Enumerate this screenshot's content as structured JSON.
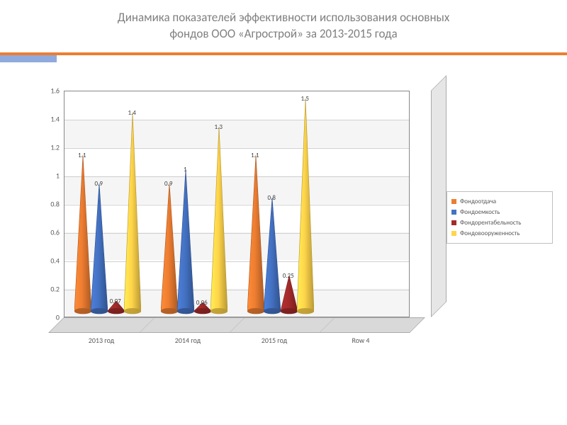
{
  "title_line1": "Динамика показателей эффективности использования основных",
  "title_line2": "фондов  ООО «Агрострой»  за 2013-2015 года",
  "chart": {
    "type": "3d-cone-clustered",
    "background_color": "#ffffff",
    "floor_color": "#d9d9d9",
    "grid_color": "#d0d0d0",
    "border_color": "#888888",
    "ylim": [
      0,
      1.6
    ],
    "ytick_step": 0.2,
    "yticks": [
      "0",
      "0.2",
      "0.4",
      "0.6",
      "0.8",
      "1",
      "1.2",
      "1.4",
      "1.6"
    ],
    "categories": [
      "2013 год",
      "2014 год",
      "2015 год",
      "Row 4"
    ],
    "series": [
      {
        "name": "Фондоотдача",
        "color": "#ed7d31"
      },
      {
        "name": "Фондоемкость",
        "color": "#4472c4"
      },
      {
        "name": "Фондорентабельность",
        "color": "#a52a2a"
      },
      {
        "name": "Фондовооруженность",
        "color": "#ffd54a"
      }
    ],
    "data": [
      [
        1.1,
        0.9,
        0.07,
        1.4
      ],
      [
        0.9,
        1.0,
        0.06,
        1.3
      ],
      [
        1.1,
        0.8,
        0.25,
        1.5
      ],
      [
        null,
        null,
        null,
        null
      ]
    ],
    "label_fontsize": 9,
    "title_fontsize": 17,
    "title_color": "#7f7f7f",
    "axis_fontsize": 10,
    "axis_color": "#595959",
    "cone_half_width": 12
  },
  "header_bar": {
    "orange": "#ed7d31",
    "blue": "#8faadc"
  }
}
